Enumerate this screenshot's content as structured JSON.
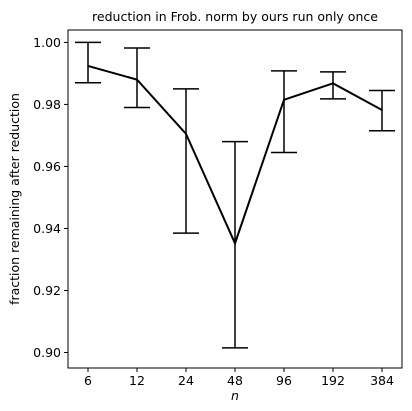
{
  "chart_data": {
    "type": "line",
    "title": "reduction in Frob. norm by ours run only once",
    "xlabel": "n",
    "ylabel": "fraction remaining after reduction",
    "categories": [
      "6",
      "12",
      "24",
      "48",
      "96",
      "192",
      "384"
    ],
    "series": [
      {
        "values": [
          0.9924,
          0.988,
          0.9705,
          0.9352,
          0.9815,
          0.9868,
          0.9782
        ],
        "error_low": [
          0.987,
          0.979,
          0.9385,
          0.9015,
          0.9645,
          0.9818,
          0.9715
        ],
        "error_high": [
          1.0,
          0.9982,
          0.985,
          0.968,
          0.9908,
          0.9905,
          0.9845
        ],
        "color": "#000000"
      }
    ],
    "ylim": [
      0.895,
      1.004
    ],
    "yticks": [
      0.9,
      0.92,
      0.94,
      0.96,
      0.98,
      1.0
    ],
    "ytick_labels": [
      "0.90",
      "0.92",
      "0.94",
      "0.96",
      "0.98",
      "1.00"
    ],
    "grid": false,
    "legend": "none"
  }
}
